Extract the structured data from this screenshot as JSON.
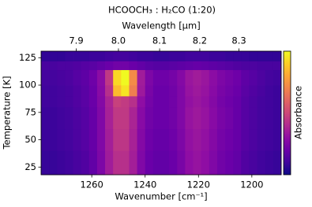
{
  "chart_data": {
    "type": "heatmap",
    "title": "HCOOCH₃ : H₂CO (1:20)",
    "xlabel": "Wavenumber [cm⁻¹]",
    "x2label": "Wavelength [μm]",
    "ylabel": "Temperature [K]",
    "colorbar_label": "Absorbance",
    "colormap": "plasma",
    "zlim": [
      0,
      1
    ],
    "xlim": [
      1279,
      1189
    ],
    "ylim": [
      18,
      131
    ],
    "xticks": [
      1260,
      1240,
      1220,
      1200
    ],
    "x2ticks": [
      7.9,
      {
        "value": 8,
        "label": "8.0"
      },
      8.1,
      8.2,
      8.3
    ],
    "yticks": [
      25,
      50,
      75,
      100,
      125
    ],
    "xbins": [
      1279,
      1276,
      1273,
      1270,
      1267,
      1264,
      1261,
      1258,
      1255,
      1252,
      1249,
      1246,
      1243,
      1240,
      1237,
      1234,
      1231,
      1228,
      1225,
      1222,
      1219,
      1216,
      1213,
      1210,
      1207,
      1204,
      1201,
      1198,
      1195,
      1192,
      1189
    ],
    "ybins": [
      18,
      40,
      60,
      80,
      90,
      100,
      114,
      122,
      131
    ],
    "z": [
      [
        0.08,
        0.08,
        0.09,
        0.1,
        0.12,
        0.14,
        0.18,
        0.25,
        0.35,
        0.42,
        0.42,
        0.36,
        0.26,
        0.2,
        0.18,
        0.18,
        0.2,
        0.24,
        0.3,
        0.32,
        0.3,
        0.26,
        0.22,
        0.2,
        0.18,
        0.14,
        0.12,
        0.1,
        0.09,
        0.08
      ],
      [
        0.09,
        0.09,
        0.1,
        0.11,
        0.13,
        0.15,
        0.19,
        0.26,
        0.36,
        0.44,
        0.44,
        0.37,
        0.27,
        0.21,
        0.19,
        0.19,
        0.21,
        0.25,
        0.31,
        0.33,
        0.31,
        0.27,
        0.23,
        0.21,
        0.19,
        0.15,
        0.13,
        0.11,
        0.1,
        0.09
      ],
      [
        0.09,
        0.09,
        0.1,
        0.11,
        0.13,
        0.15,
        0.19,
        0.26,
        0.37,
        0.45,
        0.45,
        0.38,
        0.28,
        0.22,
        0.2,
        0.2,
        0.22,
        0.26,
        0.32,
        0.34,
        0.32,
        0.28,
        0.24,
        0.22,
        0.19,
        0.15,
        0.13,
        0.11,
        0.1,
        0.09
      ],
      [
        0.1,
        0.1,
        0.11,
        0.12,
        0.14,
        0.16,
        0.2,
        0.27,
        0.38,
        0.48,
        0.46,
        0.42,
        0.3,
        0.23,
        0.2,
        0.2,
        0.22,
        0.26,
        0.31,
        0.33,
        0.31,
        0.27,
        0.23,
        0.21,
        0.19,
        0.15,
        0.13,
        0.11,
        0.1,
        0.09
      ],
      [
        0.1,
        0.1,
        0.11,
        0.12,
        0.14,
        0.16,
        0.2,
        0.28,
        0.42,
        0.85,
        0.95,
        0.68,
        0.34,
        0.24,
        0.2,
        0.2,
        0.22,
        0.26,
        0.32,
        0.34,
        0.32,
        0.28,
        0.24,
        0.22,
        0.2,
        0.16,
        0.14,
        0.12,
        0.1,
        0.09
      ],
      [
        0.11,
        0.11,
        0.12,
        0.13,
        0.15,
        0.17,
        0.21,
        0.29,
        0.45,
        0.92,
        1.0,
        0.72,
        0.35,
        0.25,
        0.21,
        0.21,
        0.23,
        0.27,
        0.33,
        0.35,
        0.33,
        0.29,
        0.25,
        0.23,
        0.21,
        0.17,
        0.15,
        0.13,
        0.11,
        0.1
      ],
      [
        0.12,
        0.12,
        0.13,
        0.13,
        0.14,
        0.15,
        0.16,
        0.18,
        0.2,
        0.22,
        0.22,
        0.2,
        0.18,
        0.16,
        0.15,
        0.15,
        0.16,
        0.17,
        0.18,
        0.19,
        0.18,
        0.17,
        0.16,
        0.15,
        0.14,
        0.13,
        0.13,
        0.12,
        0.12,
        0.12
      ],
      [
        0.07,
        0.07,
        0.07,
        0.08,
        0.08,
        0.08,
        0.09,
        0.09,
        0.1,
        0.11,
        0.11,
        0.1,
        0.09,
        0.09,
        0.08,
        0.08,
        0.09,
        0.09,
        0.1,
        0.1,
        0.1,
        0.09,
        0.09,
        0.08,
        0.08,
        0.08,
        0.07,
        0.07,
        0.07,
        0.07
      ]
    ]
  }
}
